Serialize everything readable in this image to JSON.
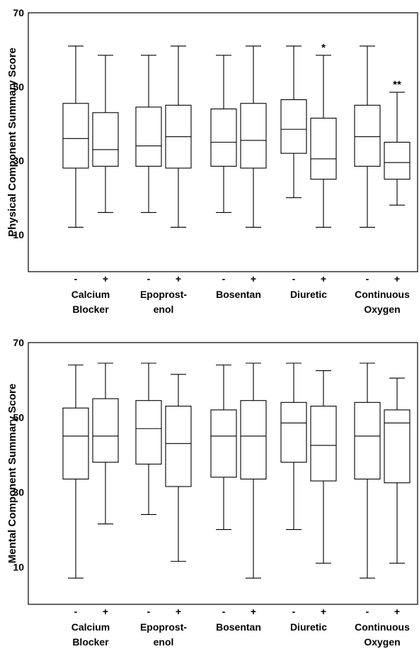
{
  "chart_data": [
    {
      "type": "box",
      "ylabel": "Physical Component Summary Score",
      "ylim": [
        0,
        70
      ],
      "yticks": [
        "70",
        "50",
        "30",
        "10"
      ],
      "group_labels": [
        [
          "Calcium",
          "Blocker"
        ],
        [
          "Epoprost-",
          "enol"
        ],
        [
          "Bosentan"
        ],
        [
          "Diuretic"
        ],
        [
          "Continuous",
          "Oxygen"
        ]
      ],
      "sign_labels": [
        "-",
        "+"
      ],
      "series": [
        {
          "group": 0,
          "sign": "-",
          "min": 12,
          "q1": 28,
          "median": 36,
          "q3": 45.5,
          "max": 61,
          "annotation": ""
        },
        {
          "group": 0,
          "sign": "+",
          "min": 16,
          "q1": 28.5,
          "median": 33,
          "q3": 43,
          "max": 58.5,
          "annotation": ""
        },
        {
          "group": 1,
          "sign": "-",
          "min": 16,
          "q1": 28.5,
          "median": 34,
          "q3": 44.5,
          "max": 58.5,
          "annotation": ""
        },
        {
          "group": 1,
          "sign": "+",
          "min": 12,
          "q1": 28,
          "median": 36.5,
          "q3": 45,
          "max": 61,
          "annotation": ""
        },
        {
          "group": 2,
          "sign": "-",
          "min": 16,
          "q1": 28.5,
          "median": 35,
          "q3": 44,
          "max": 58.5,
          "annotation": ""
        },
        {
          "group": 2,
          "sign": "+",
          "min": 12,
          "q1": 28,
          "median": 35.5,
          "q3": 45.5,
          "max": 61,
          "annotation": ""
        },
        {
          "group": 3,
          "sign": "-",
          "min": 20,
          "q1": 32,
          "median": 38.5,
          "q3": 46.5,
          "max": 61,
          "annotation": ""
        },
        {
          "group": 3,
          "sign": "+",
          "min": 12,
          "q1": 25,
          "median": 30.5,
          "q3": 41.5,
          "max": 58.5,
          "annotation": "*"
        },
        {
          "group": 4,
          "sign": "-",
          "min": 12,
          "q1": 28.5,
          "median": 36.5,
          "q3": 45,
          "max": 61,
          "annotation": ""
        },
        {
          "group": 4,
          "sign": "+",
          "min": 18,
          "q1": 25,
          "median": 29.5,
          "q3": 35,
          "max": 48.5,
          "annotation": "**"
        }
      ]
    },
    {
      "type": "box",
      "ylabel": "Mental Component Summary Score",
      "ylim": [
        0,
        70
      ],
      "yticks": [
        "70",
        "50",
        "30",
        "10"
      ],
      "group_labels": [
        [
          "Calcium",
          "Blocker"
        ],
        [
          "Epoprost-",
          "enol"
        ],
        [
          "Bosentan"
        ],
        [
          "Diuretic"
        ],
        [
          "Continuous",
          "Oxygen"
        ]
      ],
      "sign_labels": [
        "-",
        "+"
      ],
      "series": [
        {
          "group": 0,
          "sign": "-",
          "min": 7,
          "q1": 33.5,
          "median": 45,
          "q3": 52.5,
          "max": 64,
          "annotation": ""
        },
        {
          "group": 0,
          "sign": "+",
          "min": 21.5,
          "q1": 38,
          "median": 45,
          "q3": 55,
          "max": 64.5,
          "annotation": ""
        },
        {
          "group": 1,
          "sign": "-",
          "min": 24,
          "q1": 37.5,
          "median": 47,
          "q3": 54.5,
          "max": 64.5,
          "annotation": ""
        },
        {
          "group": 1,
          "sign": "+",
          "min": 11.5,
          "q1": 31.5,
          "median": 43,
          "q3": 53,
          "max": 61.5,
          "annotation": ""
        },
        {
          "group": 2,
          "sign": "-",
          "min": 20,
          "q1": 34,
          "median": 45,
          "q3": 52,
          "max": 64,
          "annotation": ""
        },
        {
          "group": 2,
          "sign": "+",
          "min": 7,
          "q1": 33.5,
          "median": 45,
          "q3": 54.5,
          "max": 64.5,
          "annotation": ""
        },
        {
          "group": 3,
          "sign": "-",
          "min": 20,
          "q1": 38,
          "median": 48.5,
          "q3": 54,
          "max": 64.5,
          "annotation": ""
        },
        {
          "group": 3,
          "sign": "+",
          "min": 11,
          "q1": 33,
          "median": 42.5,
          "q3": 53,
          "max": 62.5,
          "annotation": ""
        },
        {
          "group": 4,
          "sign": "-",
          "min": 7,
          "q1": 33.5,
          "median": 45,
          "q3": 54,
          "max": 64.5,
          "annotation": ""
        },
        {
          "group": 4,
          "sign": "+",
          "min": 11,
          "q1": 32.5,
          "median": 48.5,
          "q3": 52,
          "max": 60.5,
          "annotation": ""
        }
      ]
    }
  ]
}
